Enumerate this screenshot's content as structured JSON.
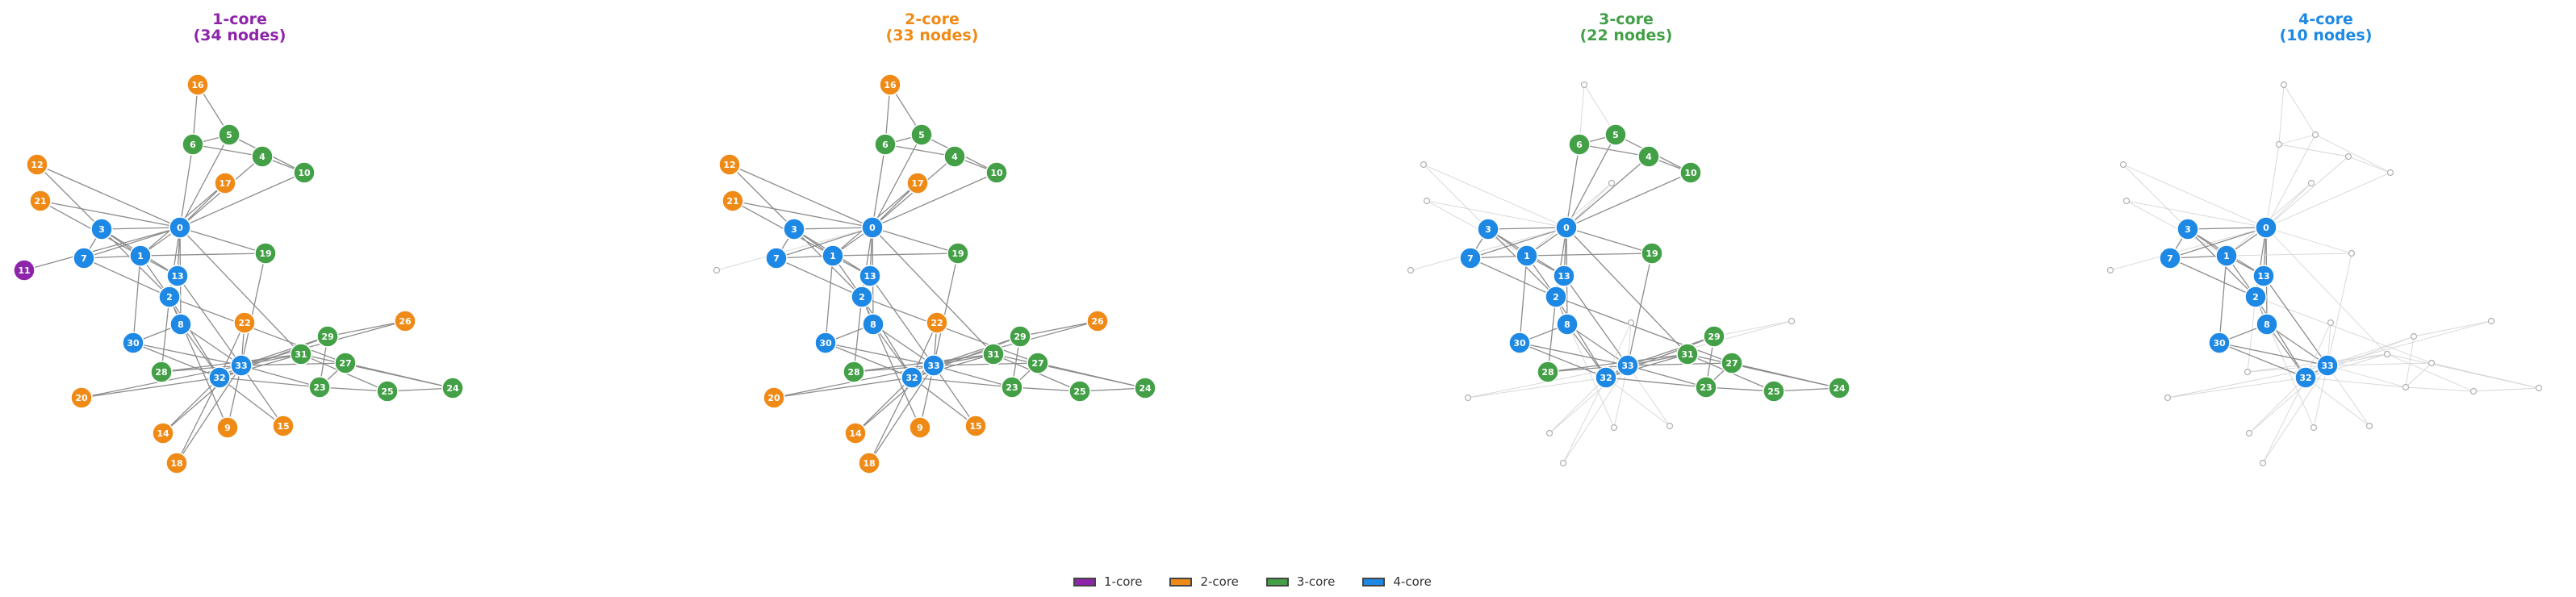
{
  "panels": [
    {
      "title": "1-core",
      "subtitle": "(34 nodes)",
      "k": 1,
      "color": "#8E24AA"
    },
    {
      "title": "2-core",
      "subtitle": "(33 nodes)",
      "k": 2,
      "color": "#EF8A17"
    },
    {
      "title": "3-core",
      "subtitle": "(22 nodes)",
      "k": 3,
      "color": "#43A047"
    },
    {
      "title": "4-core",
      "subtitle": "(10 nodes)",
      "k": 4,
      "color": "#1E88E5"
    }
  ],
  "core_colors": {
    "1": "#8E24AA",
    "2": "#EF8A17",
    "3": "#43A047",
    "4": "#1E88E5"
  },
  "nodes": [
    {
      "id": "0",
      "core": 4
    },
    {
      "id": "1",
      "core": 4
    },
    {
      "id": "2",
      "core": 4
    },
    {
      "id": "3",
      "core": 4
    },
    {
      "id": "4",
      "core": 3
    },
    {
      "id": "5",
      "core": 3
    },
    {
      "id": "6",
      "core": 3
    },
    {
      "id": "7",
      "core": 4
    },
    {
      "id": "8",
      "core": 4
    },
    {
      "id": "9",
      "core": 2
    },
    {
      "id": "10",
      "core": 3
    },
    {
      "id": "11",
      "core": 1
    },
    {
      "id": "12",
      "core": 2
    },
    {
      "id": "13",
      "core": 4
    },
    {
      "id": "14",
      "core": 2
    },
    {
      "id": "15",
      "core": 2
    },
    {
      "id": "16",
      "core": 2
    },
    {
      "id": "17",
      "core": 2
    },
    {
      "id": "18",
      "core": 2
    },
    {
      "id": "19",
      "core": 3
    },
    {
      "id": "20",
      "core": 2
    },
    {
      "id": "21",
      "core": 2
    },
    {
      "id": "22",
      "core": 2
    },
    {
      "id": "23",
      "core": 3
    },
    {
      "id": "24",
      "core": 3
    },
    {
      "id": "25",
      "core": 3
    },
    {
      "id": "26",
      "core": 2
    },
    {
      "id": "27",
      "core": 3
    },
    {
      "id": "28",
      "core": 3
    },
    {
      "id": "29",
      "core": 3
    },
    {
      "id": "30",
      "core": 4
    },
    {
      "id": "31",
      "core": 3
    },
    {
      "id": "32",
      "core": 4
    },
    {
      "id": "33",
      "core": 4
    }
  ],
  "edges": [
    [
      "0",
      "1"
    ],
    [
      "0",
      "2"
    ],
    [
      "0",
      "3"
    ],
    [
      "0",
      "4"
    ],
    [
      "0",
      "5"
    ],
    [
      "0",
      "6"
    ],
    [
      "0",
      "7"
    ],
    [
      "0",
      "8"
    ],
    [
      "0",
      "10"
    ],
    [
      "0",
      "11"
    ],
    [
      "0",
      "12"
    ],
    [
      "0",
      "13"
    ],
    [
      "0",
      "17"
    ],
    [
      "0",
      "19"
    ],
    [
      "0",
      "21"
    ],
    [
      "0",
      "31"
    ],
    [
      "1",
      "2"
    ],
    [
      "1",
      "3"
    ],
    [
      "1",
      "7"
    ],
    [
      "1",
      "13"
    ],
    [
      "1",
      "17"
    ],
    [
      "1",
      "19"
    ],
    [
      "1",
      "21"
    ],
    [
      "1",
      "30"
    ],
    [
      "2",
      "3"
    ],
    [
      "2",
      "7"
    ],
    [
      "2",
      "8"
    ],
    [
      "2",
      "9"
    ],
    [
      "2",
      "13"
    ],
    [
      "2",
      "27"
    ],
    [
      "2",
      "28"
    ],
    [
      "2",
      "32"
    ],
    [
      "3",
      "7"
    ],
    [
      "3",
      "12"
    ],
    [
      "3",
      "13"
    ],
    [
      "4",
      "6"
    ],
    [
      "4",
      "10"
    ],
    [
      "5",
      "6"
    ],
    [
      "5",
      "10"
    ],
    [
      "5",
      "16"
    ],
    [
      "6",
      "16"
    ],
    [
      "8",
      "30"
    ],
    [
      "8",
      "32"
    ],
    [
      "8",
      "33"
    ],
    [
      "9",
      "33"
    ],
    [
      "13",
      "33"
    ],
    [
      "14",
      "32"
    ],
    [
      "14",
      "33"
    ],
    [
      "15",
      "32"
    ],
    [
      "15",
      "33"
    ],
    [
      "18",
      "32"
    ],
    [
      "18",
      "33"
    ],
    [
      "19",
      "33"
    ],
    [
      "20",
      "32"
    ],
    [
      "20",
      "33"
    ],
    [
      "22",
      "32"
    ],
    [
      "22",
      "33"
    ],
    [
      "23",
      "25"
    ],
    [
      "23",
      "27"
    ],
    [
      "23",
      "29"
    ],
    [
      "23",
      "32"
    ],
    [
      "23",
      "33"
    ],
    [
      "24",
      "25"
    ],
    [
      "24",
      "27"
    ],
    [
      "24",
      "31"
    ],
    [
      "25",
      "31"
    ],
    [
      "26",
      "29"
    ],
    [
      "26",
      "33"
    ],
    [
      "27",
      "33"
    ],
    [
      "28",
      "31"
    ],
    [
      "28",
      "33"
    ],
    [
      "29",
      "32"
    ],
    [
      "29",
      "33"
    ],
    [
      "30",
      "32"
    ],
    [
      "30",
      "33"
    ],
    [
      "31",
      "32"
    ],
    [
      "31",
      "33"
    ],
    [
      "32",
      "33"
    ]
  ],
  "legend": [
    {
      "label": "1-core",
      "color": "#8E24AA"
    },
    {
      "label": "2-core",
      "color": "#EF8A17"
    },
    {
      "label": "3-core",
      "color": "#43A047"
    },
    {
      "label": "4-core",
      "color": "#1E88E5"
    }
  ]
}
